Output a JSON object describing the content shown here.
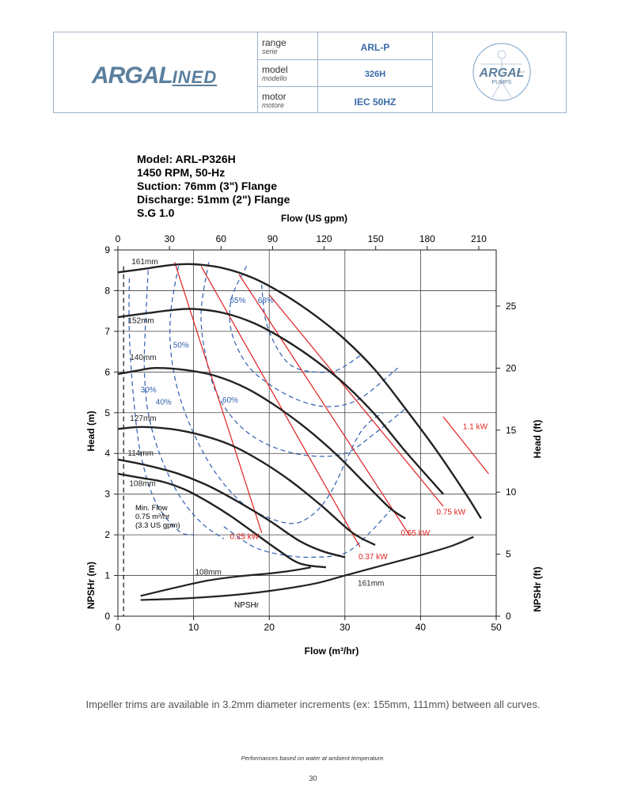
{
  "header": {
    "logo_left": "ARGAL",
    "logo_left_sub": "INED",
    "logo_right": "ARGAL",
    "logo_right_sub": "PUMPS",
    "logo_right_tag": "ITALY",
    "rows": [
      {
        "label": "range",
        "label_it": "serie",
        "value": "ARL-P"
      },
      {
        "label": "model",
        "label_it": "modello",
        "value": "326H"
      },
      {
        "label": "motor",
        "label_it": "motore",
        "value": "IEC 50HZ"
      }
    ]
  },
  "chart_data": {
    "type": "line",
    "title_lines": [
      "Model: ARL-P326H",
      "1450 RPM, 50-Hz",
      "Suction: 76mm (3\") Flange",
      "Discharge: 51mm (2\") Flange",
      "S.G 1.0"
    ],
    "xlabel": "Flow (m³/hr)",
    "x2label": "Flow (US gpm)",
    "ylabel": "Head (m)",
    "ylabel_lower": "NPSHr (m)",
    "y2label": "Head (ft)",
    "y2label_lower": "NPSHr (ft)",
    "xlim": [
      0,
      50
    ],
    "ylim": [
      0,
      9
    ],
    "x_ticks": [
      0,
      10,
      20,
      30,
      40,
      50
    ],
    "y_ticks": [
      0,
      1,
      2,
      3,
      4,
      5,
      6,
      7,
      8,
      9
    ],
    "x2_ticks": [
      0,
      30,
      60,
      90,
      120,
      150,
      180,
      210
    ],
    "y2_ticks": [
      0,
      5,
      10,
      15,
      20,
      25
    ],
    "impeller_curves": [
      {
        "name": "161mm",
        "points": [
          [
            0,
            8.45
          ],
          [
            4,
            8.55
          ],
          [
            7,
            8.63
          ],
          [
            10,
            8.65
          ],
          [
            14,
            8.55
          ],
          [
            18,
            8.3
          ],
          [
            22,
            7.9
          ],
          [
            26,
            7.4
          ],
          [
            30,
            6.8
          ],
          [
            34,
            6.05
          ],
          [
            38,
            5.1
          ],
          [
            42,
            4.1
          ],
          [
            46,
            3.0
          ],
          [
            48,
            2.4
          ]
        ]
      },
      {
        "name": "152mm",
        "points": [
          [
            0,
            7.35
          ],
          [
            4,
            7.45
          ],
          [
            7,
            7.52
          ],
          [
            10,
            7.55
          ],
          [
            14,
            7.45
          ],
          [
            18,
            7.2
          ],
          [
            22,
            6.8
          ],
          [
            26,
            6.3
          ],
          [
            30,
            5.7
          ],
          [
            34,
            4.95
          ],
          [
            38,
            4.05
          ],
          [
            43,
            3.0
          ]
        ]
      },
      {
        "name": "140mm",
        "points": [
          [
            0,
            5.95
          ],
          [
            3,
            6.05
          ],
          [
            5,
            6.1
          ],
          [
            9,
            6.05
          ],
          [
            13,
            5.9
          ],
          [
            17,
            5.6
          ],
          [
            21,
            5.15
          ],
          [
            25,
            4.6
          ],
          [
            29,
            3.95
          ],
          [
            33,
            3.2
          ],
          [
            36,
            2.65
          ],
          [
            38,
            2.4
          ]
        ]
      },
      {
        "name": "127mm",
        "points": [
          [
            0,
            4.6
          ],
          [
            3,
            4.65
          ],
          [
            7,
            4.6
          ],
          [
            11,
            4.45
          ],
          [
            15,
            4.2
          ],
          [
            19,
            3.8
          ],
          [
            23,
            3.3
          ],
          [
            27,
            2.7
          ],
          [
            31,
            2.05
          ],
          [
            34,
            1.75
          ]
        ]
      },
      {
        "name": "114mm",
        "points": [
          [
            0,
            3.85
          ],
          [
            4,
            3.7
          ],
          [
            8,
            3.5
          ],
          [
            12,
            3.2
          ],
          [
            16,
            2.8
          ],
          [
            20,
            2.35
          ],
          [
            24,
            1.85
          ],
          [
            27,
            1.6
          ],
          [
            30,
            1.45
          ]
        ]
      },
      {
        "name": "108mm",
        "points": [
          [
            0,
            3.5
          ],
          [
            3,
            3.4
          ],
          [
            6,
            3.3
          ],
          [
            9,
            3.1
          ],
          [
            12,
            2.8
          ],
          [
            15,
            2.45
          ],
          [
            18,
            2.05
          ],
          [
            21,
            1.65
          ],
          [
            24,
            1.3
          ],
          [
            27.5,
            1.2
          ]
        ]
      }
    ],
    "npshr_curves": [
      {
        "name": "108mm",
        "points": [
          [
            3,
            0.5
          ],
          [
            8,
            0.72
          ],
          [
            12,
            0.88
          ],
          [
            16,
            0.98
          ],
          [
            20,
            1.05
          ],
          [
            23,
            1.12
          ],
          [
            25.5,
            1.2
          ]
        ]
      },
      {
        "name": "161mm",
        "points": [
          [
            3,
            0.4
          ],
          [
            8,
            0.43
          ],
          [
            14,
            0.5
          ],
          [
            20,
            0.62
          ],
          [
            26,
            0.8
          ],
          [
            30,
            1.0
          ],
          [
            35,
            1.25
          ],
          [
            40,
            1.5
          ],
          [
            44,
            1.72
          ],
          [
            47,
            1.95
          ]
        ]
      }
    ],
    "efficiency_curves": [
      {
        "name": "30%",
        "points": [
          [
            1.5,
            8.3
          ],
          [
            1.5,
            7
          ],
          [
            2,
            5.5
          ],
          [
            3,
            4
          ],
          [
            5,
            2.8
          ],
          [
            8,
            2.1
          ],
          [
            10,
            2
          ]
        ]
      },
      {
        "name": "40%",
        "points": [
          [
            4,
            8.5
          ],
          [
            3.6,
            7
          ],
          [
            3.5,
            6
          ],
          [
            4,
            5
          ],
          [
            5.5,
            4
          ],
          [
            8,
            3
          ],
          [
            11,
            2.3
          ],
          [
            14,
            1.9
          ]
        ]
      },
      {
        "name": "50%",
        "points": [
          [
            8,
            8.6
          ],
          [
            7,
            7.5
          ],
          [
            7,
            6.5
          ],
          [
            8,
            5.5
          ],
          [
            10,
            4.5
          ],
          [
            13,
            3.5
          ],
          [
            17,
            2.7
          ],
          [
            22,
            2.3
          ],
          [
            25,
            2.4
          ],
          [
            28,
            3
          ],
          [
            32,
            4.5
          ],
          [
            35,
            5
          ]
        ]
      },
      {
        "name": "60%",
        "points": [
          [
            12,
            8.7
          ],
          [
            11,
            7.5
          ],
          [
            11.5,
            6.5
          ],
          [
            13,
            5.5
          ],
          [
            16,
            4.7
          ],
          [
            20,
            4.2
          ],
          [
            25,
            3.95
          ],
          [
            30,
            4.0
          ],
          [
            34,
            4.5
          ],
          [
            38,
            5.1
          ]
        ]
      },
      {
        "name": "65%",
        "points": [
          [
            17,
            8.6
          ],
          [
            15,
            7.8
          ],
          [
            15,
            7
          ],
          [
            17,
            6.2
          ],
          [
            20,
            5.7
          ],
          [
            24,
            5.3
          ],
          [
            28,
            5.15
          ],
          [
            32,
            5.35
          ],
          [
            37,
            6.1
          ]
        ]
      },
      {
        "name": "68%",
        "points": [
          [
            19,
            8.15
          ],
          [
            19.5,
            7.3
          ],
          [
            21,
            6.6
          ],
          [
            23,
            6.15
          ],
          [
            26,
            6
          ],
          [
            29,
            6.05
          ],
          [
            32,
            6.4
          ]
        ]
      },
      {
        "name": "efficiency-bottom",
        "points": [
          [
            14,
            2.2
          ],
          [
            18,
            1.7
          ],
          [
            22,
            1.5
          ],
          [
            26,
            1.45
          ],
          [
            30,
            1.55
          ],
          [
            33,
            2.0
          ],
          [
            36,
            2.6
          ]
        ]
      }
    ],
    "power_lines": [
      {
        "name": "0.25 kW",
        "points": [
          [
            7.5,
            8.7
          ],
          [
            19,
            2.05
          ]
        ]
      },
      {
        "name": "0.37 kW",
        "points": [
          [
            11,
            8.6
          ],
          [
            32,
            1.7
          ]
        ]
      },
      {
        "name": "0.55 kW",
        "points": [
          [
            16,
            8.4
          ],
          [
            38.5,
            2.0
          ]
        ]
      },
      {
        "name": "0.75 kW",
        "points": [
          [
            20,
            7.9
          ],
          [
            43,
            2.7
          ]
        ]
      },
      {
        "name": "1.1 kW",
        "points": [
          [
            43,
            4.9
          ],
          [
            49,
            3.5
          ]
        ]
      }
    ],
    "min_flow_note": [
      "Min. Flow",
      "0.75 m³/hr",
      "(3.3 US gpm)"
    ],
    "min_flow_x": 0.75,
    "npshr_label": "NPSHr",
    "grid": true
  },
  "footer": {
    "note": "Impeller trims are available in 3.2mm diameter increments (ex: 155mm, 111mm) between all curves.",
    "small_note": "Performances based on water at ambient temperature.",
    "page_number": "30"
  },
  "colors": {
    "curve": "#222222",
    "efficiency": "#2f5fb0",
    "power": "#e02020",
    "header_value": "#3a6aa8",
    "logo": "#5b7f9e"
  }
}
